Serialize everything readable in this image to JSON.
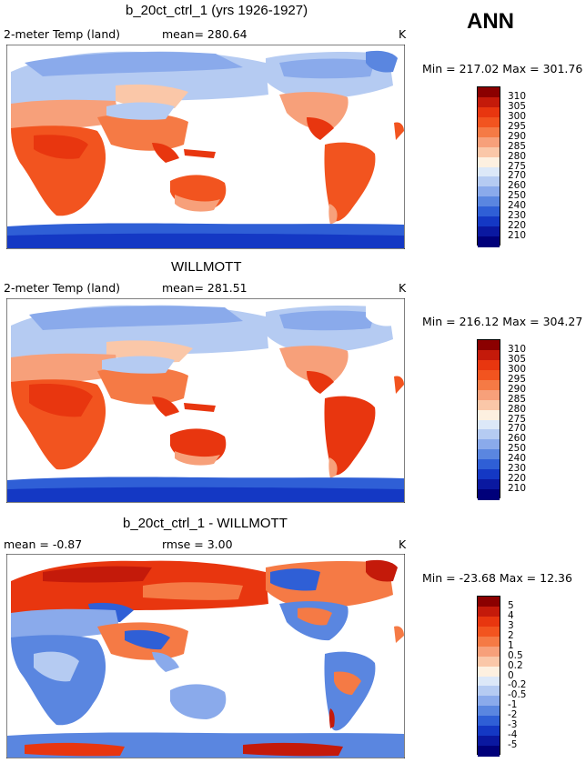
{
  "header": {
    "season": "ANN"
  },
  "panels": [
    {
      "title": "b_20ct_ctrl_1 (yrs 1926-1927)",
      "left_label": "2-meter Temp (land)",
      "mid_label": "mean= 280.64",
      "units": "K",
      "minmax": "Min = 217.02 Max = 301.76",
      "levels": [
        "310",
        "305",
        "300",
        "295",
        "290",
        "285",
        "280",
        "275",
        "270",
        "260",
        "250",
        "240",
        "230",
        "220",
        "210"
      ],
      "colors": [
        "#8b0000",
        "#c41a0a",
        "#e8360f",
        "#f2541f",
        "#f57a45",
        "#f7a07a",
        "#fac7a8",
        "#fdf0e0",
        "#dce8f8",
        "#b5cbf2",
        "#8aaaeb",
        "#5a86e0",
        "#2f5fd6",
        "#1438c4",
        "#0a18a0",
        "#00007a"
      ]
    },
    {
      "title": "WILLMOTT",
      "left_label": "2-meter Temp (land)",
      "mid_label": "mean= 281.51",
      "units": "K",
      "minmax": "Min = 216.12 Max = 304.27",
      "levels": [
        "310",
        "305",
        "300",
        "295",
        "290",
        "285",
        "280",
        "275",
        "270",
        "260",
        "250",
        "240",
        "230",
        "220",
        "210"
      ],
      "colors": [
        "#8b0000",
        "#c41a0a",
        "#e8360f",
        "#f2541f",
        "#f57a45",
        "#f7a07a",
        "#fac7a8",
        "#fdf0e0",
        "#dce8f8",
        "#b5cbf2",
        "#8aaaeb",
        "#5a86e0",
        "#2f5fd6",
        "#1438c4",
        "#0a18a0",
        "#00007a"
      ]
    },
    {
      "title": "b_20ct_ctrl_1 - WILLMOTT",
      "left_label": "mean =   -0.87",
      "mid_label": "rmse =    3.00",
      "units": "K",
      "minmax": "Min = -23.68 Max =  12.36",
      "levels": [
        "5",
        "4",
        "3",
        "2",
        "1",
        "0.5",
        "0.2",
        "0",
        "-0.2",
        "-0.5",
        "-1",
        "-2",
        "-3",
        "-4",
        "-5"
      ],
      "colors": [
        "#8b0000",
        "#c41a0a",
        "#e8360f",
        "#f2541f",
        "#f57a45",
        "#f7a07a",
        "#fac7a8",
        "#fdf0e0",
        "#dce8f8",
        "#b5cbf2",
        "#8aaaeb",
        "#5a86e0",
        "#2f5fd6",
        "#1438c4",
        "#0a18a0",
        "#00007a"
      ]
    }
  ]
}
